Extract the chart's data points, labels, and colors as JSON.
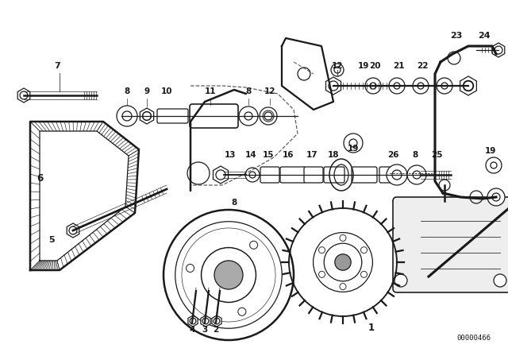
{
  "bg_color": "#ffffff",
  "line_color": "#1a1a1a",
  "code": "00000466",
  "figsize": [
    6.4,
    4.48
  ],
  "dpi": 100
}
